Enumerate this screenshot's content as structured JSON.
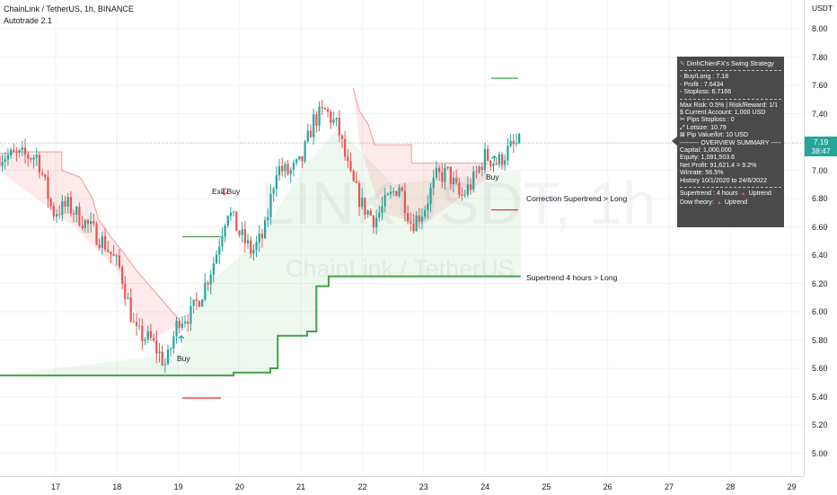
{
  "chart": {
    "title": "ChainLink / TetherUS, 1h, BINANCE",
    "indicator": "Autotrade 2.1",
    "watermark_symbol": "LINKUSDT, 1h",
    "watermark_name": "ChainLink / TetherUS",
    "axis_unit": "USDT",
    "current_price": "7.19",
    "countdown": "38:47",
    "colors": {
      "up": "#26a69a",
      "down": "#ef5350",
      "supertrend_up": "#43a047",
      "supertrend_down": "#e57373"
    }
  },
  "annotations": {
    "exit_buy": "Exit Buy",
    "buy_1": "Buy",
    "buy_2": "Buy",
    "correction_label": "Correction Supertrend  > Long",
    "supertrend_label": "Supertrend 4 hours > Long"
  },
  "panel": {
    "title": "DinhChienFX's Swing Strategy",
    "buy_long": "- Buy/Long    : 7.18",
    "profit": "- Profit    : 7.6434",
    "stoploss": "- Stoploss: 6.7166",
    "risk": "Max Risk: 0.5% | Risk/Reward: 1/1",
    "account": "$ Current Account: 1,000 USD",
    "pips": "✂ Pips Stoploss : 0",
    "lotsize": "⤢ Lotsize: 10.79",
    "pip_value": "⊠ Pip Value/lot: 10 USD",
    "overview_header": "--------- OVERVIEW SUMMARY ---------",
    "capital": "Capital: 1,000,000",
    "equity": "Equity: 1,091,503.6",
    "net_profit": "Net Profit: 91,621.4 = 9.2%",
    "winrate": "Winrate: 56.5%",
    "history": "History 10/1/2020 to 24/6/2022",
    "supertrend_key": "Supertrend : 4 hours",
    "supertrend_val": "Uptrend",
    "dow_key": "Dow theory:",
    "dow_val": "Uptrend"
  },
  "chart_data": {
    "type": "candlestick",
    "symbol": "LINKUSDT",
    "interval": "1h",
    "y_axis_ticks": [
      "8.00",
      "7.80",
      "7.60",
      "7.40",
      "7.20",
      "7.00",
      "6.80",
      "6.60",
      "6.40",
      "6.20",
      "6.00",
      "5.80",
      "5.60",
      "5.40",
      "5.20",
      "5.00"
    ],
    "x_axis_ticks": [
      "17",
      "18",
      "19",
      "20",
      "21",
      "22",
      "23",
      "24",
      "25",
      "26",
      "27",
      "28",
      "29"
    ],
    "ylim": [
      4.8,
      8.15
    ],
    "approx_close_path": [
      [
        16.7,
        7.1
      ],
      [
        16.95,
        6.7
      ],
      [
        17.2,
        6.75
      ],
      [
        17.5,
        6.62
      ],
      [
        17.8,
        6.48
      ],
      [
        18.05,
        6.3
      ],
      [
        18.3,
        5.85
      ],
      [
        18.55,
        5.8
      ],
      [
        18.8,
        5.62
      ],
      [
        19.0,
        5.95
      ],
      [
        19.2,
        5.98
      ],
      [
        19.4,
        6.15
      ],
      [
        19.6,
        6.38
      ],
      [
        19.8,
        6.73
      ],
      [
        20.0,
        6.55
      ],
      [
        20.2,
        6.42
      ],
      [
        20.4,
        6.55
      ],
      [
        20.6,
        7.02
      ],
      [
        20.8,
        6.98
      ],
      [
        21.0,
        7.05
      ],
      [
        21.2,
        7.35
      ],
      [
        21.4,
        7.42
      ],
      [
        21.6,
        7.3
      ],
      [
        21.8,
        6.95
      ],
      [
        22.0,
        6.75
      ],
      [
        22.2,
        6.65
      ],
      [
        22.4,
        6.78
      ],
      [
        22.6,
        6.9
      ],
      [
        22.8,
        6.62
      ],
      [
        23.0,
        6.72
      ],
      [
        23.2,
        6.95
      ],
      [
        23.4,
        6.98
      ],
      [
        23.6,
        6.8
      ],
      [
        23.8,
        6.92
      ],
      [
        24.0,
        7.1
      ],
      [
        24.2,
        7.05
      ],
      [
        24.4,
        7.15
      ],
      [
        24.55,
        7.19
      ]
    ],
    "annotation_levels": {
      "exit_buy_marker": [
        19.75,
        6.82
      ],
      "buy_marker_1": [
        19.05,
        5.83
      ],
      "buy_marker_2": [
        24.15,
        7.05
      ],
      "take_profit_line": 7.65,
      "stop_line": 6.72,
      "entry_line_1": 6.53,
      "stop_line_1": 5.39
    }
  }
}
